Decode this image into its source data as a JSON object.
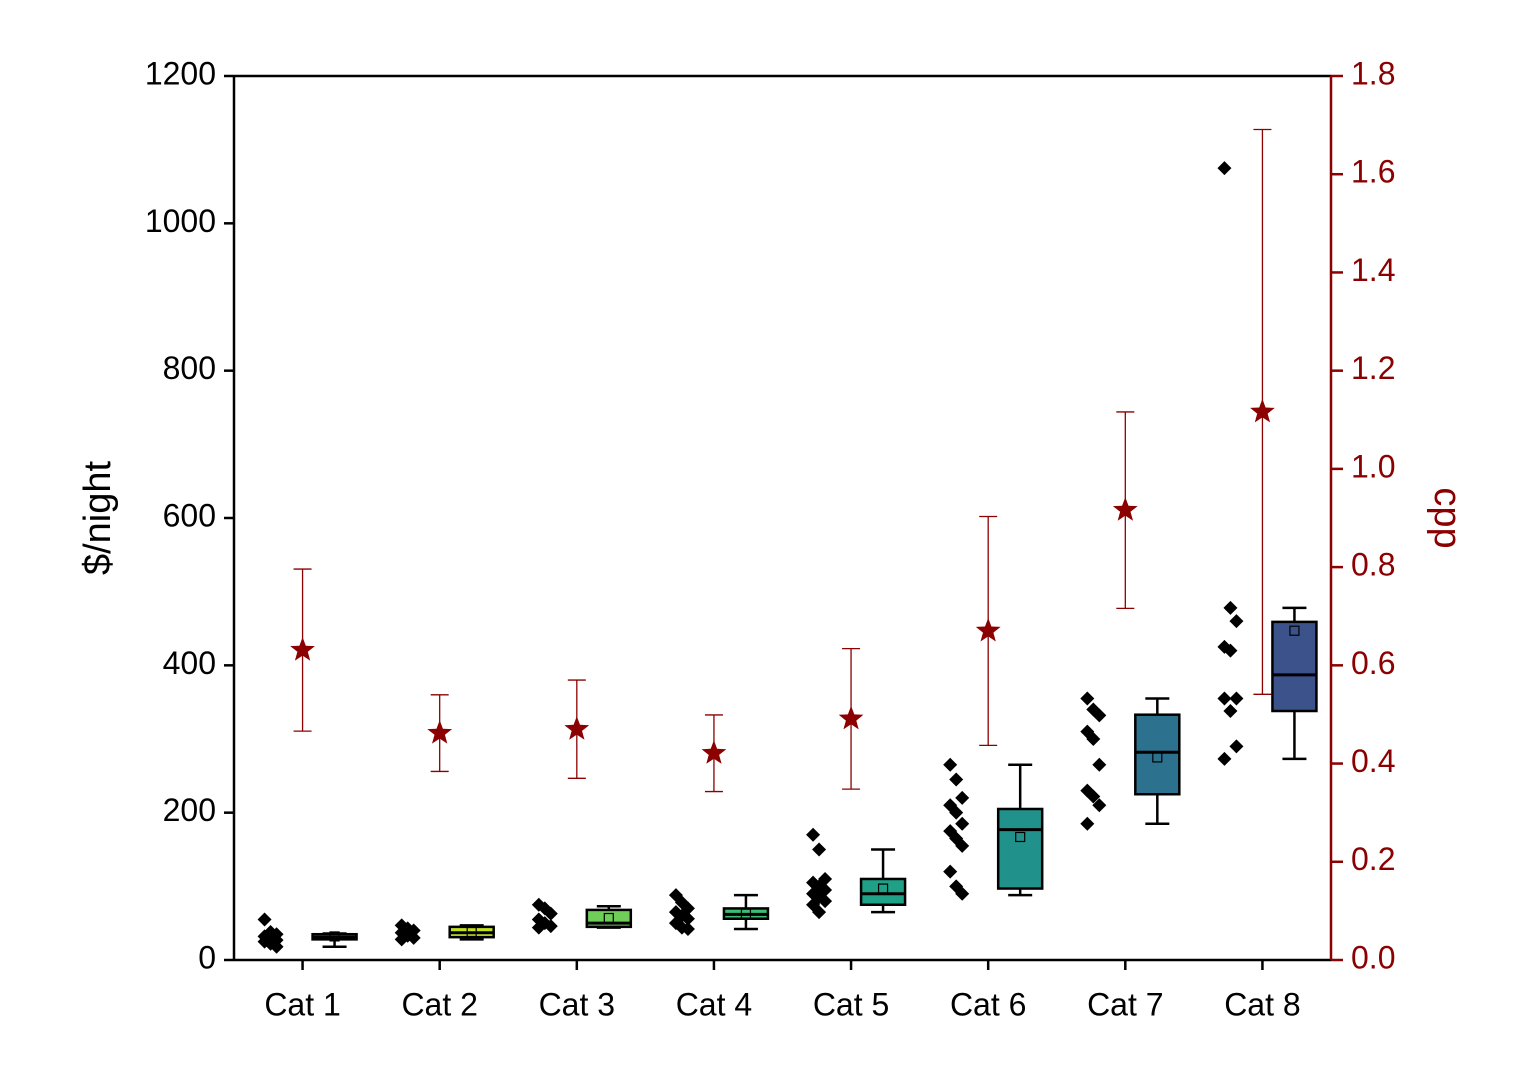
{
  "chart_data": {
    "type": "box",
    "ylabel": "$/night",
    "y2label": "cpp",
    "categories": [
      "Cat 1",
      "Cat 2",
      "Cat 3",
      "Cat 4",
      "Cat 5",
      "Cat 6",
      "Cat 7",
      "Cat 8"
    ],
    "ylim": [
      0,
      1200
    ],
    "yticks": [
      0,
      200,
      400,
      600,
      800,
      1000,
      1200
    ],
    "y2lim": [
      0,
      1.8
    ],
    "y2ticks": [
      {
        "value": 0,
        "label": "0.0"
      },
      0.2,
      0.4,
      0.6,
      0.8,
      {
        "value": 1,
        "label": "1.0"
      },
      1.2,
      1.4,
      1.6,
      1.8
    ],
    "axis_color": "#000000",
    "y2_color": "#8b0000",
    "point_color": "#000000",
    "boxes": [
      {
        "color": "#dde318",
        "low": 18,
        "q1": 28,
        "median": 31,
        "q3": 35,
        "high": 36,
        "mean": 32,
        "points": [
          55,
          38,
          35,
          32,
          30,
          27,
          25,
          22,
          18
        ]
      },
      {
        "color": "#c2df23",
        "low": 28,
        "q1": 31,
        "median": 37,
        "q3": 45,
        "high": 47,
        "mean": 38,
        "points": [
          47,
          43,
          40,
          37,
          33,
          30,
          28
        ]
      },
      {
        "color": "#6ece58",
        "low": 44,
        "q1": 45,
        "median": 50,
        "q3": 68,
        "high": 73,
        "mean": 57,
        "points": [
          75,
          70,
          63,
          55,
          50,
          46,
          44
        ]
      },
      {
        "color": "#3dbc74",
        "low": 42,
        "q1": 56,
        "median": 62,
        "q3": 70,
        "high": 88,
        "mean": 63,
        "points": [
          88,
          78,
          70,
          65,
          60,
          56,
          50,
          44,
          42
        ]
      },
      {
        "color": "#1fa187",
        "low": 65,
        "q1": 75,
        "median": 90,
        "q3": 110,
        "high": 150,
        "mean": 97,
        "points": [
          170,
          150,
          110,
          105,
          100,
          95,
          90,
          85,
          80,
          75,
          65
        ]
      },
      {
        "color": "#21918c",
        "low": 88,
        "q1": 97,
        "median": 177,
        "q3": 205,
        "high": 265,
        "mean": 167,
        "points": [
          265,
          245,
          220,
          210,
          200,
          185,
          175,
          165,
          155,
          120,
          100,
          90
        ]
      },
      {
        "color": "#2c728e",
        "low": 185,
        "q1": 225,
        "median": 282,
        "q3": 333,
        "high": 355,
        "mean": 275,
        "points": [
          355,
          340,
          332,
          310,
          300,
          265,
          230,
          222,
          210,
          185
        ]
      },
      {
        "color": "#3b528b",
        "low": 273,
        "q1": 338,
        "median": 387,
        "q3": 459,
        "high": 478,
        "mean": 447,
        "points": [
          1075,
          478,
          460,
          425,
          420,
          355,
          355,
          338,
          290,
          273
        ]
      }
    ],
    "y2_series": {
      "axis": "y2",
      "color": "#8b0000",
      "values": [
        0.631,
        0.462,
        0.47,
        0.421,
        0.491,
        0.67,
        0.916,
        1.116
      ],
      "errors": [
        0.165,
        0.078,
        0.1,
        0.078,
        0.143,
        0.233,
        0.2,
        0.575
      ]
    }
  }
}
